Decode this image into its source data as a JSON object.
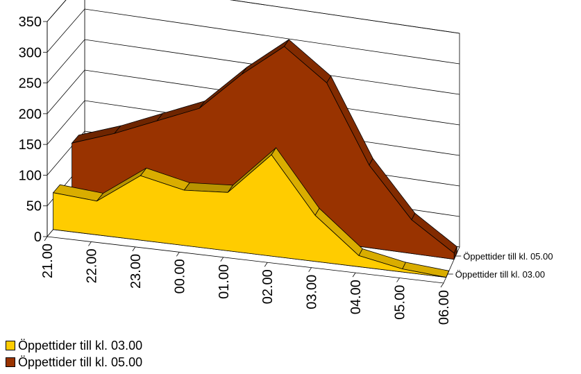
{
  "chart_data": {
    "type": "area",
    "title": "",
    "xlabel": "",
    "ylabel": "",
    "ylim": [
      0,
      350
    ],
    "y_ticks": [
      "0",
      "50",
      "100",
      "150",
      "200",
      "250",
      "300",
      "350"
    ],
    "categories": [
      "21.00",
      "22.00",
      "23.00",
      "00.00",
      "01.00",
      "02.00",
      "03.00",
      "04.00",
      "05.00",
      "06.00"
    ],
    "series": [
      {
        "name": "Öppettider till kl. 03.00",
        "color": "#FFCC00",
        "values": [
          60,
          55,
          105,
          90,
          95,
          165,
          75,
          18,
          5,
          0
        ]
      },
      {
        "name": "Öppettider till kl. 05.00",
        "color": "#993300",
        "values": [
          105,
          130,
          160,
          190,
          255,
          310,
          260,
          135,
          55,
          10
        ]
      }
    ],
    "legend_position": "bottom-left",
    "grid": true,
    "three_d": true
  }
}
